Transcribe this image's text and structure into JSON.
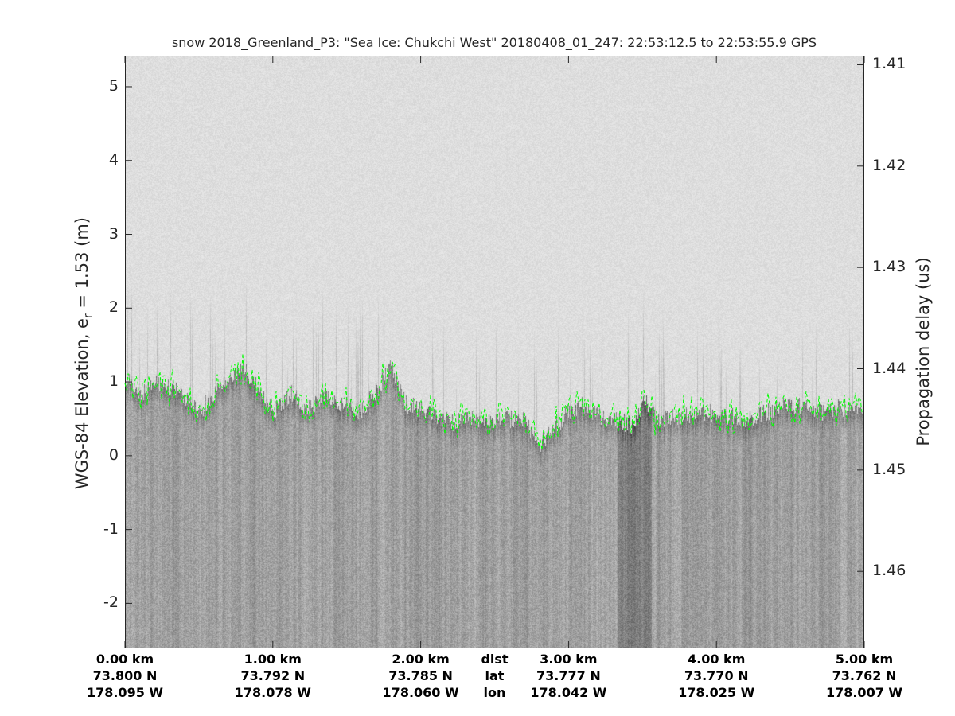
{
  "chart_data": {
    "type": "heatmap",
    "title": "snow 2018_Greenland_P3: \"Sea Ice: Chukchi West\"  20180408_01_247: 22:53:12.5 to 22:53:55.9 GPS",
    "ylabel_left": "WGS-84 Elevation, e",
    "ylabel_left_sub": "r",
    "ylabel_left_tail": " = 1.53 (m)",
    "ylabel_right": "Propagation delay (us)",
    "ylim_left": [
      -2.61,
      5.42
    ],
    "ylim_right": [
      1.4676,
      1.4091
    ],
    "left_ticks": [
      "5",
      "4",
      "3",
      "2",
      "1",
      "0",
      "-1",
      "-2"
    ],
    "left_tick_values": [
      5,
      4,
      3,
      2,
      1,
      0,
      -1,
      -2
    ],
    "right_ticks": [
      "1.41",
      "1.42",
      "1.43",
      "1.44",
      "1.45",
      "1.46"
    ],
    "right_tick_values": [
      1.41,
      1.42,
      1.43,
      1.44,
      1.45,
      1.46
    ],
    "xlim_km": [
      0,
      5
    ],
    "x_axis_row_labels": [
      "dist",
      "lat",
      "lon"
    ],
    "x_ticks": [
      {
        "km": 0,
        "dist": "0.00 km",
        "lat": "73.800 N",
        "lon": "178.095 W"
      },
      {
        "km": 1,
        "dist": "1.00 km",
        "lat": "73.792 N",
        "lon": "178.078 W"
      },
      {
        "km": 2,
        "dist": "2.00 km",
        "lat": "73.785 N",
        "lon": "178.060 W"
      },
      {
        "km": 3,
        "dist": "3.00 km",
        "lat": "73.777 N",
        "lon": "178.042 W"
      },
      {
        "km": 4,
        "dist": "4.00 km",
        "lat": "73.770 N",
        "lon": "178.025 W"
      },
      {
        "km": 5,
        "dist": "5.00 km",
        "lat": "73.762 N",
        "lon": "178.007 W"
      }
    ],
    "colormap": "gray",
    "surface_pick_color": "#00ff00",
    "surface_pick_style": "dashed",
    "surface_elevation_m": {
      "km": [
        0,
        0.1,
        0.2,
        0.35,
        0.5,
        0.7,
        0.8,
        0.9,
        1.0,
        1.15,
        1.2,
        1.35,
        1.6,
        1.8,
        1.9,
        2.1,
        2.2,
        2.4,
        2.7,
        2.75,
        2.8,
        3.0,
        3.1,
        3.2,
        3.3,
        3.45,
        3.5,
        3.6,
        3.9,
        4.2,
        4.5,
        4.7,
        5.0
      ],
      "elev": [
        1.1,
        0.8,
        1.0,
        0.9,
        0.6,
        1.1,
        1.2,
        0.9,
        0.6,
        0.9,
        0.6,
        0.8,
        0.6,
        1.2,
        0.7,
        0.55,
        0.45,
        0.5,
        0.5,
        0.3,
        0.15,
        0.6,
        0.7,
        0.55,
        0.5,
        0.4,
        0.8,
        0.5,
        0.6,
        0.5,
        0.7,
        0.6,
        0.7
      ]
    }
  }
}
